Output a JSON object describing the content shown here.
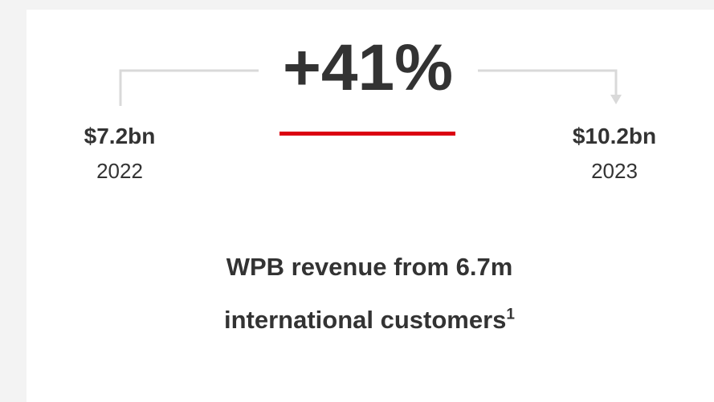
{
  "headline": "+41%",
  "start": {
    "value": "$7.2bn",
    "year": "2022"
  },
  "end": {
    "value": "$10.2bn",
    "year": "2023"
  },
  "caption": {
    "text": "WPB revenue from 6.7m international customers",
    "footnote": "1"
  }
}
